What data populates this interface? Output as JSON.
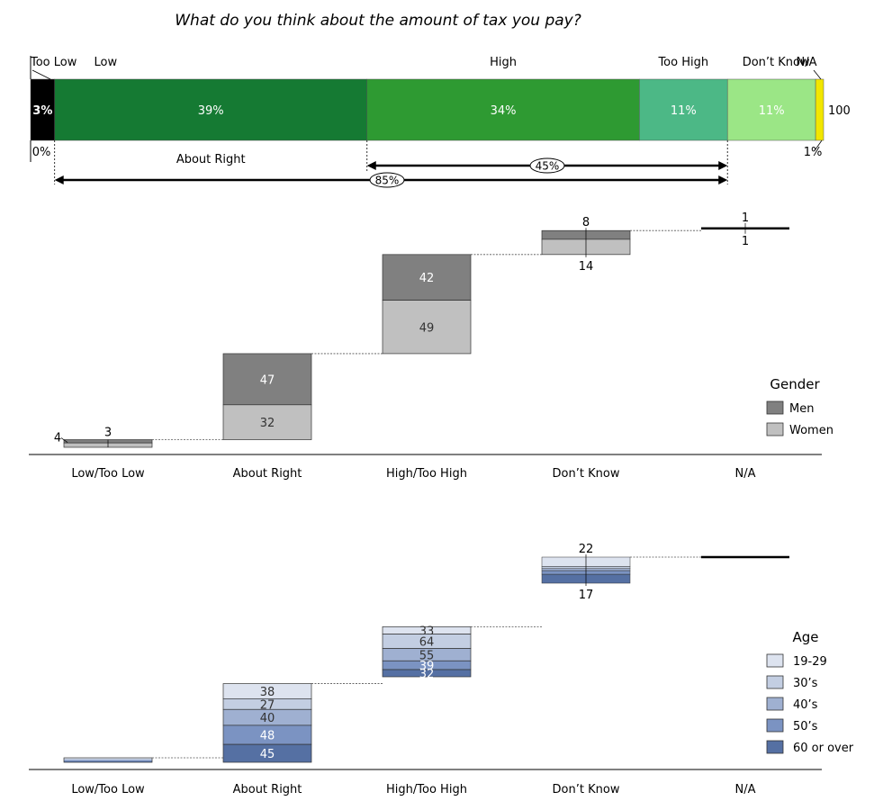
{
  "title": "What do you think about the amount of tax you pay?",
  "chart_data": [
    {
      "type": "bar",
      "subtype": "stacked-100",
      "categories": [
        "Too Low",
        "Low",
        "High",
        "Too High",
        "Don’t Know",
        "N/A"
      ],
      "values": [
        3,
        39,
        34,
        11,
        11,
        1
      ],
      "value_labels": [
        "3%",
        "39%",
        "34%",
        "11%",
        "11%",
        ""
      ],
      "colors": [
        "#000000",
        "#157a33",
        "#2e9a32",
        "#4cb886",
        "#9be686",
        "#f2e600"
      ],
      "axis_start_label": "0%",
      "axis_end_label": "100",
      "na_label": "1%",
      "brackets": [
        {
          "label": "About Right",
          "from": "Low",
          "to": "Low"
        },
        {
          "label": "45%",
          "from": "High",
          "to": "Too High"
        },
        {
          "label": "85%",
          "from": "Low",
          "to": "Too High"
        }
      ]
    },
    {
      "type": "bar",
      "subtype": "waterfall-stacked",
      "categories": [
        "Low/Too Low",
        "About Right",
        "High/Too High",
        "Don’t Know",
        "N/A"
      ],
      "legend": {
        "title": "Gender",
        "position": "right"
      },
      "series": [
        {
          "name": "Men",
          "color": "#808080",
          "values": [
            3,
            47,
            42,
            8,
            1
          ]
        },
        {
          "name": "Women",
          "color": "#c0c0c0",
          "values": [
            4,
            32,
            49,
            14,
            1
          ]
        }
      ]
    },
    {
      "type": "bar",
      "subtype": "waterfall-stacked",
      "categories": [
        "Low/Too Low",
        "About Right",
        "High/Too High",
        "Don’t Know",
        "N/A"
      ],
      "legend": {
        "title": "Age",
        "position": "right"
      },
      "series": [
        {
          "name": "19-29",
          "color": "#dde3ef",
          "values": [
            null,
            38,
            33,
            22,
            null
          ]
        },
        {
          "name": "30’s",
          "color": "#c3cee2",
          "values": [
            null,
            27,
            64,
            null,
            null
          ]
        },
        {
          "name": "40’s",
          "color": "#9fb0d1",
          "values": [
            null,
            40,
            55,
            null,
            null
          ]
        },
        {
          "name": "50’s",
          "color": "#7b93c2",
          "values": [
            null,
            48,
            39,
            null,
            null
          ]
        },
        {
          "name": "60 or over",
          "color": "#5570a3",
          "values": [
            null,
            45,
            32,
            17,
            null
          ]
        }
      ]
    }
  ]
}
